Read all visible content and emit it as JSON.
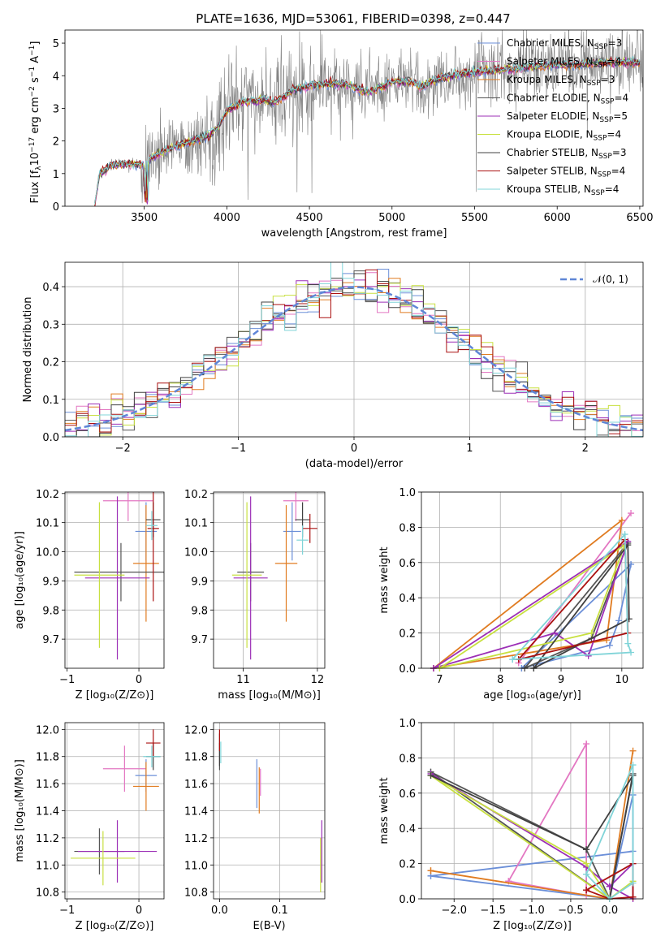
{
  "title": "PLATE=1636, MJD=53061, FIBERID=0398, z=0.447",
  "colors": [
    "#6b8fd8",
    "#e377c2",
    "#e07b20",
    "#555555",
    "#9c2fb6",
    "#c8e040",
    "#404040",
    "#aa1111",
    "#80d4d8"
  ],
  "models": [
    {
      "text": "Chabrier MILES, N",
      "sub": "SSP",
      "tail": "=3",
      "color": "#6b8fd8"
    },
    {
      "text": "Salpeter MILES, N",
      "sub": "SSP",
      "tail": "=4",
      "color": "#e377c2"
    },
    {
      "text": "Kroupa MILES, N",
      "sub": "SSP",
      "tail": "=3",
      "color": "#e07b20"
    },
    {
      "text": "Chabrier ELODIE, N",
      "sub": "SSP",
      "tail": "=4",
      "color": "#555555"
    },
    {
      "text": "Salpeter ELODIE, N",
      "sub": "SSP",
      "tail": "=5",
      "color": "#9c2fb6"
    },
    {
      "text": "Kroupa ELODIE, N",
      "sub": "SSP",
      "tail": "=4",
      "color": "#c8e040"
    },
    {
      "text": "Chabrier STELIB, N",
      "sub": "SSP",
      "tail": "=3",
      "color": "#404040"
    },
    {
      "text": "Salpeter STELIB, N",
      "sub": "SSP",
      "tail": "=4",
      "color": "#aa1111"
    },
    {
      "text": "Kroupa STELIB, N",
      "sub": "SSP",
      "tail": "=4",
      "color": "#80d4d8"
    }
  ],
  "chart_data": [
    {
      "id": "spectrum",
      "type": "line",
      "title": "PLATE=1636, MJD=53061, FIBERID=0398, z=0.447",
      "xlabel": "wavelength [Angstrom, rest frame]",
      "ylabel_parts": [
        "Flux [f",
        "λ",
        "10",
        "−17",
        " erg cm",
        "−2",
        " s",
        "−1",
        " A",
        "−1",
        "]"
      ],
      "xlim": [
        3020,
        6520
      ],
      "ylim": [
        0,
        5.4
      ],
      "xticks": [
        3500,
        4000,
        4500,
        5000,
        5500,
        6000,
        6500
      ],
      "yticks": [
        0,
        1,
        2,
        3,
        4,
        5
      ],
      "data_color": "#808080",
      "data_range": [
        3220,
        6520
      ],
      "model_continuum": {
        "x": [
          3200,
          3230,
          3300,
          3400,
          3480,
          3520,
          3600,
          3700,
          3800,
          3900,
          3950,
          4000,
          4100,
          4200,
          4300,
          4400,
          4500,
          4700,
          4860,
          5000,
          5100,
          5180,
          5300,
          5500,
          5700,
          5900,
          6100,
          6300,
          6500
        ],
        "y": [
          0.0,
          1.0,
          1.25,
          1.3,
          1.25,
          1.4,
          1.65,
          1.85,
          2.0,
          2.2,
          2.45,
          2.95,
          3.2,
          3.25,
          3.2,
          3.55,
          3.7,
          3.75,
          3.5,
          3.8,
          3.85,
          3.65,
          3.95,
          4.1,
          4.2,
          4.3,
          4.35,
          4.4,
          4.4
        ]
      }
    },
    {
      "id": "residuals",
      "type": "histogram",
      "xlabel": "(data-model)/error",
      "ylabel": "Normed distribution",
      "xlim": [
        -2.5,
        2.5
      ],
      "ylim": [
        0,
        0.465
      ],
      "xticks": [
        -2,
        -1,
        0,
        1,
        2
      ],
      "yticks": [
        0.0,
        0.1,
        0.2,
        0.3,
        0.4
      ],
      "reference_label": "𝒩(0, 1)",
      "reference_color": "#5f86d6",
      "bin_width": 0.1
    },
    {
      "id": "age_vs_Z",
      "type": "errorbar",
      "xlabel": "Z [log₁₀(Z/Z⊙)]",
      "ylabel": "age  [log₁₀(age/yr)]",
      "xlim": [
        -1.03,
        0.35
      ],
      "ylim": [
        9.6,
        10.205
      ],
      "xticks": [
        -1,
        0
      ],
      "yticks": [
        9.7,
        9.8,
        9.9,
        10.0,
        10.1,
        10.2
      ],
      "points": [
        {
          "x": 0.1,
          "xerr": 0.15,
          "y": 10.07,
          "yerr": 0.1,
          "color": "#6b8fd8"
        },
        {
          "x": -0.15,
          "xerr": 0.35,
          "y": 10.175,
          "yerr": 0.07,
          "color": "#e377c2"
        },
        {
          "x": 0.1,
          "xerr": 0.18,
          "y": 9.96,
          "yerr": 0.2,
          "color": "#e07b20"
        },
        {
          "x": -0.25,
          "xerr": 0.65,
          "y": 9.93,
          "yerr": 0.1,
          "color": "#555555"
        },
        {
          "x": -0.3,
          "xerr": 0.45,
          "y": 9.91,
          "yerr": 0.28,
          "color": "#9c2fb6"
        },
        {
          "x": -0.55,
          "xerr": 0.35,
          "y": 9.92,
          "yerr": 0.25,
          "color": "#c8e040"
        },
        {
          "x": 0.2,
          "xerr": 0.1,
          "y": 10.11,
          "yerr": 0.06,
          "color": "#404040"
        },
        {
          "x": 0.2,
          "xerr": 0.08,
          "y": 10.08,
          "yerr": 0.25,
          "color": "#aa1111"
        },
        {
          "x": 0.18,
          "xerr": 0.08,
          "y": 10.09,
          "yerr": 0.05,
          "color": "#80d4d8"
        }
      ]
    },
    {
      "id": "age_vs_mass",
      "type": "errorbar",
      "xlabel": "mass [log₁₀(M/M⊙)]",
      "ylabel": "",
      "xlim": [
        10.6,
        12.1
      ],
      "ylim": [
        9.6,
        10.205
      ],
      "xticks": [
        11,
        12
      ],
      "yticks": [
        9.7,
        9.8,
        9.9,
        10.0,
        10.1,
        10.2
      ],
      "points": [
        {
          "x": 11.66,
          "xerr": 0.12,
          "y": 10.07,
          "yerr": 0.1,
          "color": "#6b8fd8"
        },
        {
          "x": 11.71,
          "xerr": 0.17,
          "y": 10.175,
          "yerr": 0.07,
          "color": "#e377c2"
        },
        {
          "x": 11.58,
          "xerr": 0.15,
          "y": 9.96,
          "yerr": 0.2,
          "color": "#e07b20"
        },
        {
          "x": 11.1,
          "xerr": 0.18,
          "y": 9.93,
          "yerr": 0.1,
          "color": "#555555"
        },
        {
          "x": 11.1,
          "xerr": 0.23,
          "y": 9.91,
          "yerr": 0.28,
          "color": "#9c2fb6"
        },
        {
          "x": 11.05,
          "xerr": 0.2,
          "y": 9.92,
          "yerr": 0.25,
          "color": "#c8e040"
        },
        {
          "x": 11.8,
          "xerr": 0.1,
          "y": 10.11,
          "yerr": 0.06,
          "color": "#404040"
        },
        {
          "x": 11.9,
          "xerr": 0.1,
          "y": 10.08,
          "yerr": 0.05,
          "color": "#aa1111"
        },
        {
          "x": 11.8,
          "xerr": 0.08,
          "y": 10.04,
          "yerr": 0.05,
          "color": "#80d4d8"
        }
      ]
    },
    {
      "id": "weight_vs_age",
      "type": "line",
      "xlabel": "age  [log₁₀(age/yr)]",
      "ylabel": "mass weight",
      "xlim": [
        6.7,
        10.35
      ],
      "ylim": [
        0,
        1.0
      ],
      "xticks": [
        7,
        8,
        9,
        10
      ],
      "yticks": [
        0.0,
        0.2,
        0.4,
        0.6,
        0.8,
        1.0
      ],
      "series": [
        {
          "color": "#6b8fd8",
          "x": [
            8.35,
            9.8,
            9.95,
            10.15,
            8.35
          ],
          "y": [
            0.0,
            0.13,
            0.27,
            0.59,
            0.0
          ]
        },
        {
          "color": "#e377c2",
          "x": [
            8.3,
            10.15,
            8.3
          ],
          "y": [
            0.03,
            0.88,
            0.03
          ]
        },
        {
          "color": "#e07b20",
          "x": [
            6.9,
            9.75,
            10.0,
            6.9
          ],
          "y": [
            0.0,
            0.16,
            0.84,
            0.0
          ]
        },
        {
          "color": "#555555",
          "x": [
            8.4,
            9.5,
            10.1,
            8.4
          ],
          "y": [
            0.0,
            0.17,
            0.71,
            0.0
          ]
        },
        {
          "color": "#9c2fb6",
          "x": [
            6.9,
            8.9,
            9.45,
            10.1,
            6.9
          ],
          "y": [
            0.0,
            0.2,
            0.07,
            0.72,
            0.0
          ]
        },
        {
          "color": "#c8e040",
          "x": [
            7.0,
            9.5,
            10.05,
            7.0
          ],
          "y": [
            0.0,
            0.2,
            0.7,
            0.0
          ]
        },
        {
          "color": "#404040",
          "x": [
            8.55,
            10.1,
            10.12,
            8.55
          ],
          "y": [
            0.0,
            0.7,
            0.28,
            0.0
          ]
        },
        {
          "color": "#aa1111",
          "x": [
            8.3,
            10.05,
            10.1,
            8.3
          ],
          "y": [
            0.05,
            0.73,
            0.2,
            0.05
          ]
        },
        {
          "color": "#80d4d8",
          "x": [
            8.2,
            10.05,
            10.1,
            10.15,
            8.2
          ],
          "y": [
            0.05,
            0.76,
            0.14,
            0.09,
            0.05
          ]
        }
      ]
    },
    {
      "id": "mass_vs_Z",
      "type": "errorbar",
      "xlabel": "Z [log₁₀(Z/Z⊙)]",
      "ylabel": "mass [log₁₀(M/M⊙)]",
      "xlim": [
        -1.03,
        0.35
      ],
      "ylim": [
        10.75,
        12.05
      ],
      "xticks": [
        -1,
        0
      ],
      "yticks": [
        10.8,
        11.0,
        11.2,
        11.4,
        11.6,
        11.8,
        12.0
      ],
      "points": [
        {
          "x": 0.1,
          "xerr": 0.15,
          "y": 11.66,
          "yerr": 0.12,
          "color": "#6b8fd8"
        },
        {
          "x": -0.2,
          "xerr": 0.3,
          "y": 11.71,
          "yerr": 0.17,
          "color": "#e377c2"
        },
        {
          "x": 0.1,
          "xerr": 0.18,
          "y": 11.58,
          "yerr": 0.18,
          "color": "#e07b20"
        },
        {
          "x": -0.55,
          "xerr": 0.35,
          "y": 11.1,
          "yerr": 0.17,
          "color": "#555555"
        },
        {
          "x": -0.3,
          "xerr": 0.55,
          "y": 11.1,
          "yerr": 0.23,
          "color": "#9c2fb6"
        },
        {
          "x": -0.5,
          "xerr": 0.45,
          "y": 11.05,
          "yerr": 0.2,
          "color": "#c8e040"
        },
        {
          "x": 0.2,
          "xerr": 0.1,
          "y": 11.8,
          "yerr": 0.1,
          "color": "#404040"
        },
        {
          "x": 0.2,
          "xerr": 0.1,
          "y": 11.9,
          "yerr": 0.1,
          "color": "#aa1111"
        },
        {
          "x": 0.18,
          "xerr": 0.12,
          "y": 11.8,
          "yerr": 0.08,
          "color": "#80d4d8"
        }
      ]
    },
    {
      "id": "mass_vs_ebv",
      "type": "errorbar",
      "xlabel": "E(B-V)",
      "ylabel": "",
      "xlim": [
        -0.01,
        0.175
      ],
      "ylim": [
        10.75,
        12.05
      ],
      "xticks": [
        0.0,
        0.1
      ],
      "yticks": [
        10.8,
        11.0,
        11.2,
        11.4,
        11.6,
        11.8,
        12.0
      ],
      "points": [
        {
          "x": 0.062,
          "xerr": 0.0,
          "y": 11.6,
          "yerr": 0.18,
          "color": "#6b8fd8"
        },
        {
          "x": 0.068,
          "xerr": 0.0,
          "y": 11.61,
          "yerr": 0.1,
          "color": "#e377c2"
        },
        {
          "x": 0.066,
          "xerr": 0.0,
          "y": 11.55,
          "yerr": 0.17,
          "color": "#e07b20"
        },
        {
          "x": 0.0,
          "xerr": 0.0,
          "y": 11.8,
          "yerr": 0.1,
          "color": "#555555"
        },
        {
          "x": 0.17,
          "xerr": 0.0,
          "y": 11.1,
          "yerr": 0.23,
          "color": "#9c2fb6"
        },
        {
          "x": 0.168,
          "xerr": 0.0,
          "y": 11.0,
          "yerr": 0.2,
          "color": "#c8e040"
        },
        {
          "x": 0.0,
          "xerr": 0.0,
          "y": 11.85,
          "yerr": 0.12,
          "color": "#404040"
        },
        {
          "x": 0.0,
          "xerr": 0.0,
          "y": 11.92,
          "yerr": 0.08,
          "color": "#aa1111"
        },
        {
          "x": 0.002,
          "xerr": 0.0,
          "y": 11.83,
          "yerr": 0.08,
          "color": "#80d4d8"
        }
      ]
    },
    {
      "id": "weight_vs_Z",
      "type": "line",
      "xlabel": "Z [log₁₀(Z/Z⊙)]",
      "ylabel": "mass weight",
      "xlim": [
        -2.42,
        0.43
      ],
      "ylim": [
        0,
        1.0
      ],
      "xticks": [
        -2.0,
        -1.5,
        -1.0,
        -0.5,
        0.0
      ],
      "yticks": [
        0.0,
        0.2,
        0.4,
        0.6,
        0.8,
        1.0
      ],
      "series": [
        {
          "color": "#6b8fd8",
          "x": [
            -2.3,
            0.3,
            0.3,
            0.3,
            0.0,
            -2.3
          ],
          "y": [
            0.13,
            0.27,
            0.59,
            0.59,
            0.0,
            0.13
          ]
        },
        {
          "color": "#e377c2",
          "x": [
            -1.3,
            -0.3,
            -0.3,
            -1.3
          ],
          "y": [
            0.1,
            0.88,
            0.02,
            0.1
          ]
        },
        {
          "color": "#e07b20",
          "x": [
            -2.3,
            0.0,
            0.3,
            0.0,
            -2.3
          ],
          "y": [
            0.16,
            0.0,
            0.84,
            0.0,
            0.16
          ]
        },
        {
          "color": "#555555",
          "x": [
            -2.3,
            -0.3,
            0.0,
            0.3,
            0.0,
            -2.3
          ],
          "y": [
            0.72,
            0.28,
            0.0,
            0.71,
            0.0,
            0.72
          ]
        },
        {
          "color": "#9c2fb6",
          "x": [
            -2.3,
            -0.3,
            0.0,
            0.3,
            0.3,
            0.0
          ],
          "y": [
            0.71,
            0.18,
            0.07,
            0.2,
            0.0,
            0.07
          ]
        },
        {
          "color": "#c8e040",
          "x": [
            -2.3,
            -0.3,
            0.0,
            0.3,
            0.0,
            -2.3
          ],
          "y": [
            0.7,
            0.2,
            0.0,
            0.1,
            0.0,
            0.7
          ]
        },
        {
          "color": "#404040",
          "x": [
            -2.3,
            -0.3,
            0.3,
            0.0
          ],
          "y": [
            0.7,
            0.28,
            0.7,
            0.0
          ]
        },
        {
          "color": "#aa1111",
          "x": [
            -0.3,
            0.3,
            0.3,
            0.0,
            -0.3
          ],
          "y": [
            0.05,
            0.2,
            0.01,
            0.0,
            0.05
          ]
        },
        {
          "color": "#80d4d8",
          "x": [
            -0.3,
            0.3,
            0.3,
            0.0,
            -0.3
          ],
          "y": [
            0.14,
            0.76,
            0.09,
            0.0,
            0.14
          ]
        }
      ]
    }
  ]
}
